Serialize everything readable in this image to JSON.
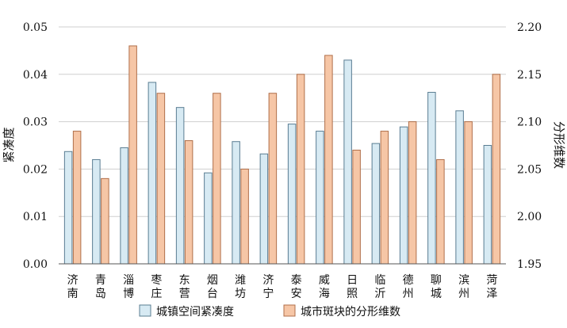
{
  "chart_data": {
    "type": "bar",
    "categories": [
      "济南",
      "青岛",
      "淄博",
      "枣庄",
      "东营",
      "烟台",
      "潍坊",
      "济宁",
      "泰安",
      "威海",
      "日照",
      "临沂",
      "德州",
      "聊城",
      "滨州",
      "菏泽"
    ],
    "series": [
      {
        "name": "城镇空间紧凑度",
        "axis": "left",
        "color": "#d7eaf3",
        "stroke": "#5a7d92",
        "values": [
          0.0237,
          0.022,
          0.0245,
          0.0383,
          0.033,
          0.0192,
          0.0258,
          0.0232,
          0.0295,
          0.028,
          0.043,
          0.0254,
          0.0289,
          0.0362,
          0.0323,
          0.025
        ]
      },
      {
        "name": "城市斑块的分形维数",
        "axis": "right",
        "color": "#f6c6a6",
        "stroke": "#b06f4a",
        "values": [
          2.09,
          2.04,
          2.18,
          2.13,
          2.08,
          2.13,
          2.05,
          2.13,
          2.15,
          2.17,
          2.07,
          2.09,
          2.1,
          2.06,
          2.1,
          2.15
        ]
      }
    ],
    "ylabel": "紧凑度",
    "y2label": "分形维数",
    "ylim": [
      0,
      0.05
    ],
    "y2lim": [
      1.95,
      2.2
    ],
    "yticks": [
      "0.00",
      "0.01",
      "0.02",
      "0.03",
      "0.04",
      "0.05"
    ],
    "y2ticks": [
      "1.95",
      "2.00",
      "2.05",
      "2.10",
      "2.15",
      "2.20"
    ],
    "grid": true,
    "legend": "bottom"
  }
}
